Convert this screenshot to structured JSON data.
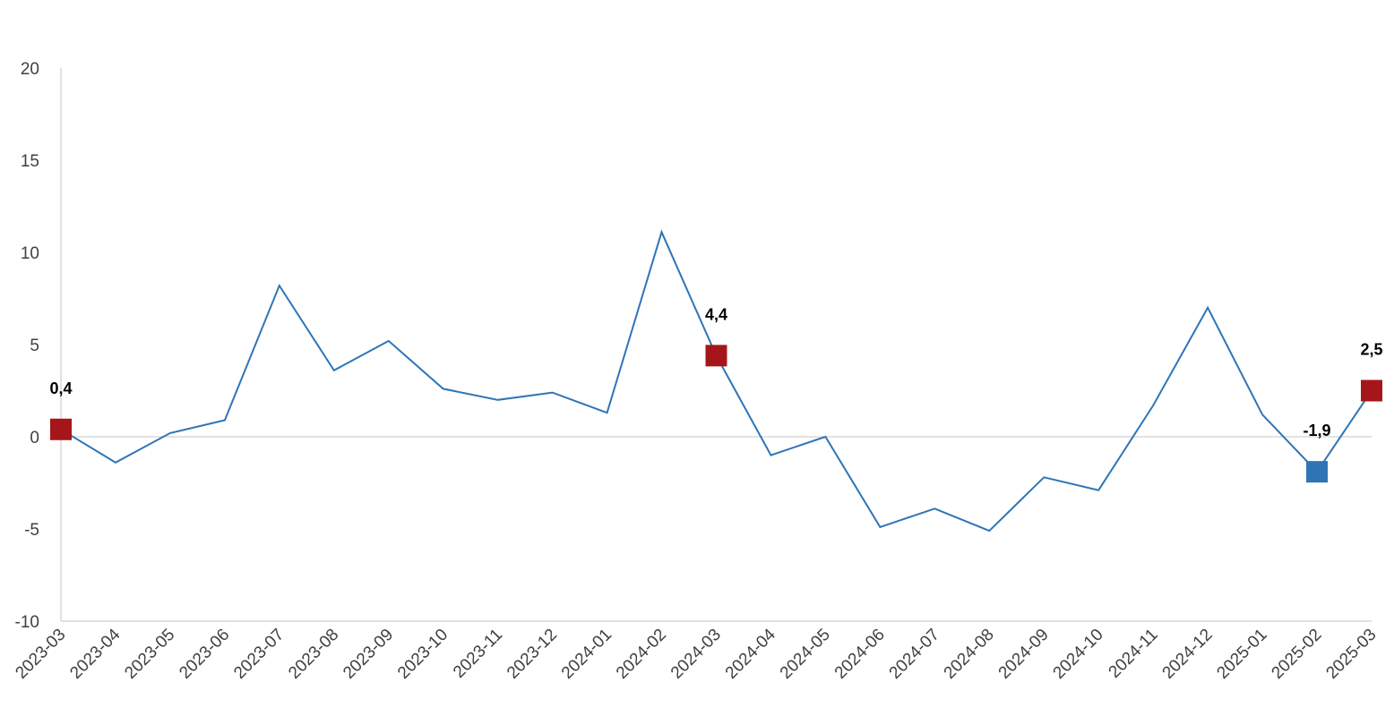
{
  "chart_data": {
    "type": "line",
    "x": [
      "2023-03",
      "2023-04",
      "2023-05",
      "2023-06",
      "2023-07",
      "2023-08",
      "2023-09",
      "2023-10",
      "2023-11",
      "2023-12",
      "2024-01",
      "2024-02",
      "2024-03",
      "2024-04",
      "2024-05",
      "2024-06",
      "2024-07",
      "2024-08",
      "2024-09",
      "2024-10",
      "2024-11",
      "2024-12",
      "2025-01",
      "2025-02",
      "2025-03"
    ],
    "series": [
      {
        "values": [
          0.4,
          -1.4,
          0.2,
          0.9,
          8.2,
          3.6,
          5.2,
          2.6,
          2.0,
          2.4,
          1.3,
          11.1,
          4.4,
          -1.0,
          0.0,
          -4.9,
          -3.9,
          -5.1,
          -2.2,
          -2.9,
          1.7,
          7.0,
          1.2,
          -1.9,
          2.5
        ],
        "color": "#2E75B6"
      }
    ],
    "highlights": [
      {
        "x": "2023-03",
        "value": 0.4,
        "label": "0,4",
        "color": "#A5161B"
      },
      {
        "x": "2024-03",
        "value": 4.4,
        "label": "4,4",
        "color": "#A5161B"
      },
      {
        "x": "2025-02",
        "value": -1.9,
        "label": "-1,9",
        "color": "#2E75B6"
      },
      {
        "x": "2025-03",
        "value": 2.5,
        "label": "2,5",
        "color": "#A5161B"
      }
    ],
    "yticks": [
      "-10",
      "-5",
      "0",
      "5",
      "10",
      "15",
      "20"
    ],
    "ylim": [
      -10,
      20
    ],
    "title": "",
    "xlabel": "",
    "ylabel": "",
    "grid": false,
    "legend": "none",
    "axis_color": "#D9D9D9"
  }
}
